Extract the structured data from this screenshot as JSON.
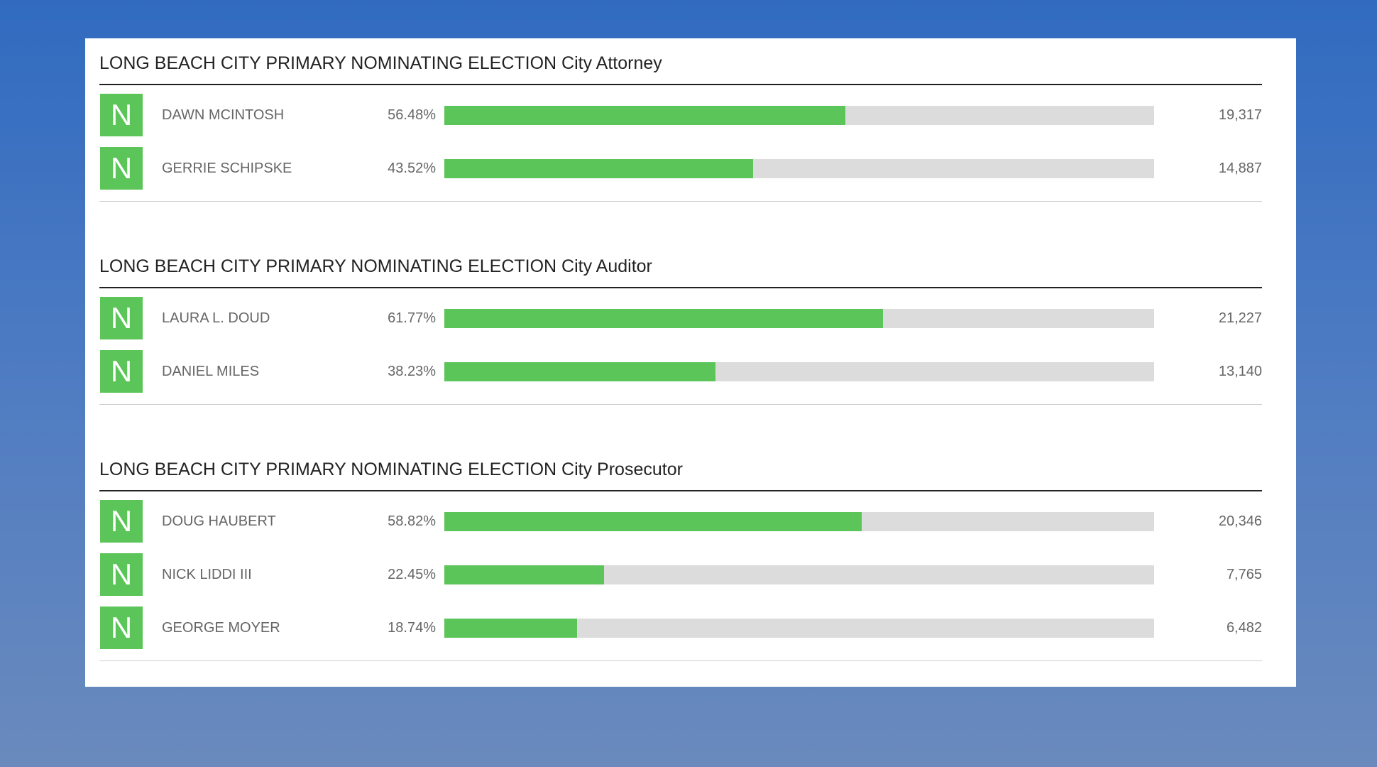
{
  "races": [
    {
      "title": "LONG BEACH CITY PRIMARY NOMINATING ELECTION City Attorney",
      "candidates": [
        {
          "badge": "N",
          "name": "DAWN MCINTOSH",
          "percent": 56.48,
          "percent_label": "56.48%",
          "votes": "19,317"
        },
        {
          "badge": "N",
          "name": "GERRIE SCHIPSKE",
          "percent": 43.52,
          "percent_label": "43.52%",
          "votes": "14,887"
        }
      ]
    },
    {
      "title": "LONG BEACH CITY PRIMARY NOMINATING ELECTION City Auditor",
      "candidates": [
        {
          "badge": "N",
          "name": "LAURA L. DOUD",
          "percent": 61.77,
          "percent_label": "61.77%",
          "votes": "21,227"
        },
        {
          "badge": "N",
          "name": "DANIEL MILES",
          "percent": 38.23,
          "percent_label": "38.23%",
          "votes": "13,140"
        }
      ]
    },
    {
      "title": "LONG BEACH CITY PRIMARY NOMINATING ELECTION City Prosecutor",
      "candidates": [
        {
          "badge": "N",
          "name": "DOUG HAUBERT",
          "percent": 58.82,
          "percent_label": "58.82%",
          "votes": "20,346"
        },
        {
          "badge": "N",
          "name": "NICK LIDDI III",
          "percent": 22.45,
          "percent_label": "22.45%",
          "votes": "7,765"
        },
        {
          "badge": "N",
          "name": "GEORGE MOYER",
          "percent": 18.74,
          "percent_label": "18.74%",
          "votes": "6,482"
        }
      ]
    }
  ]
}
